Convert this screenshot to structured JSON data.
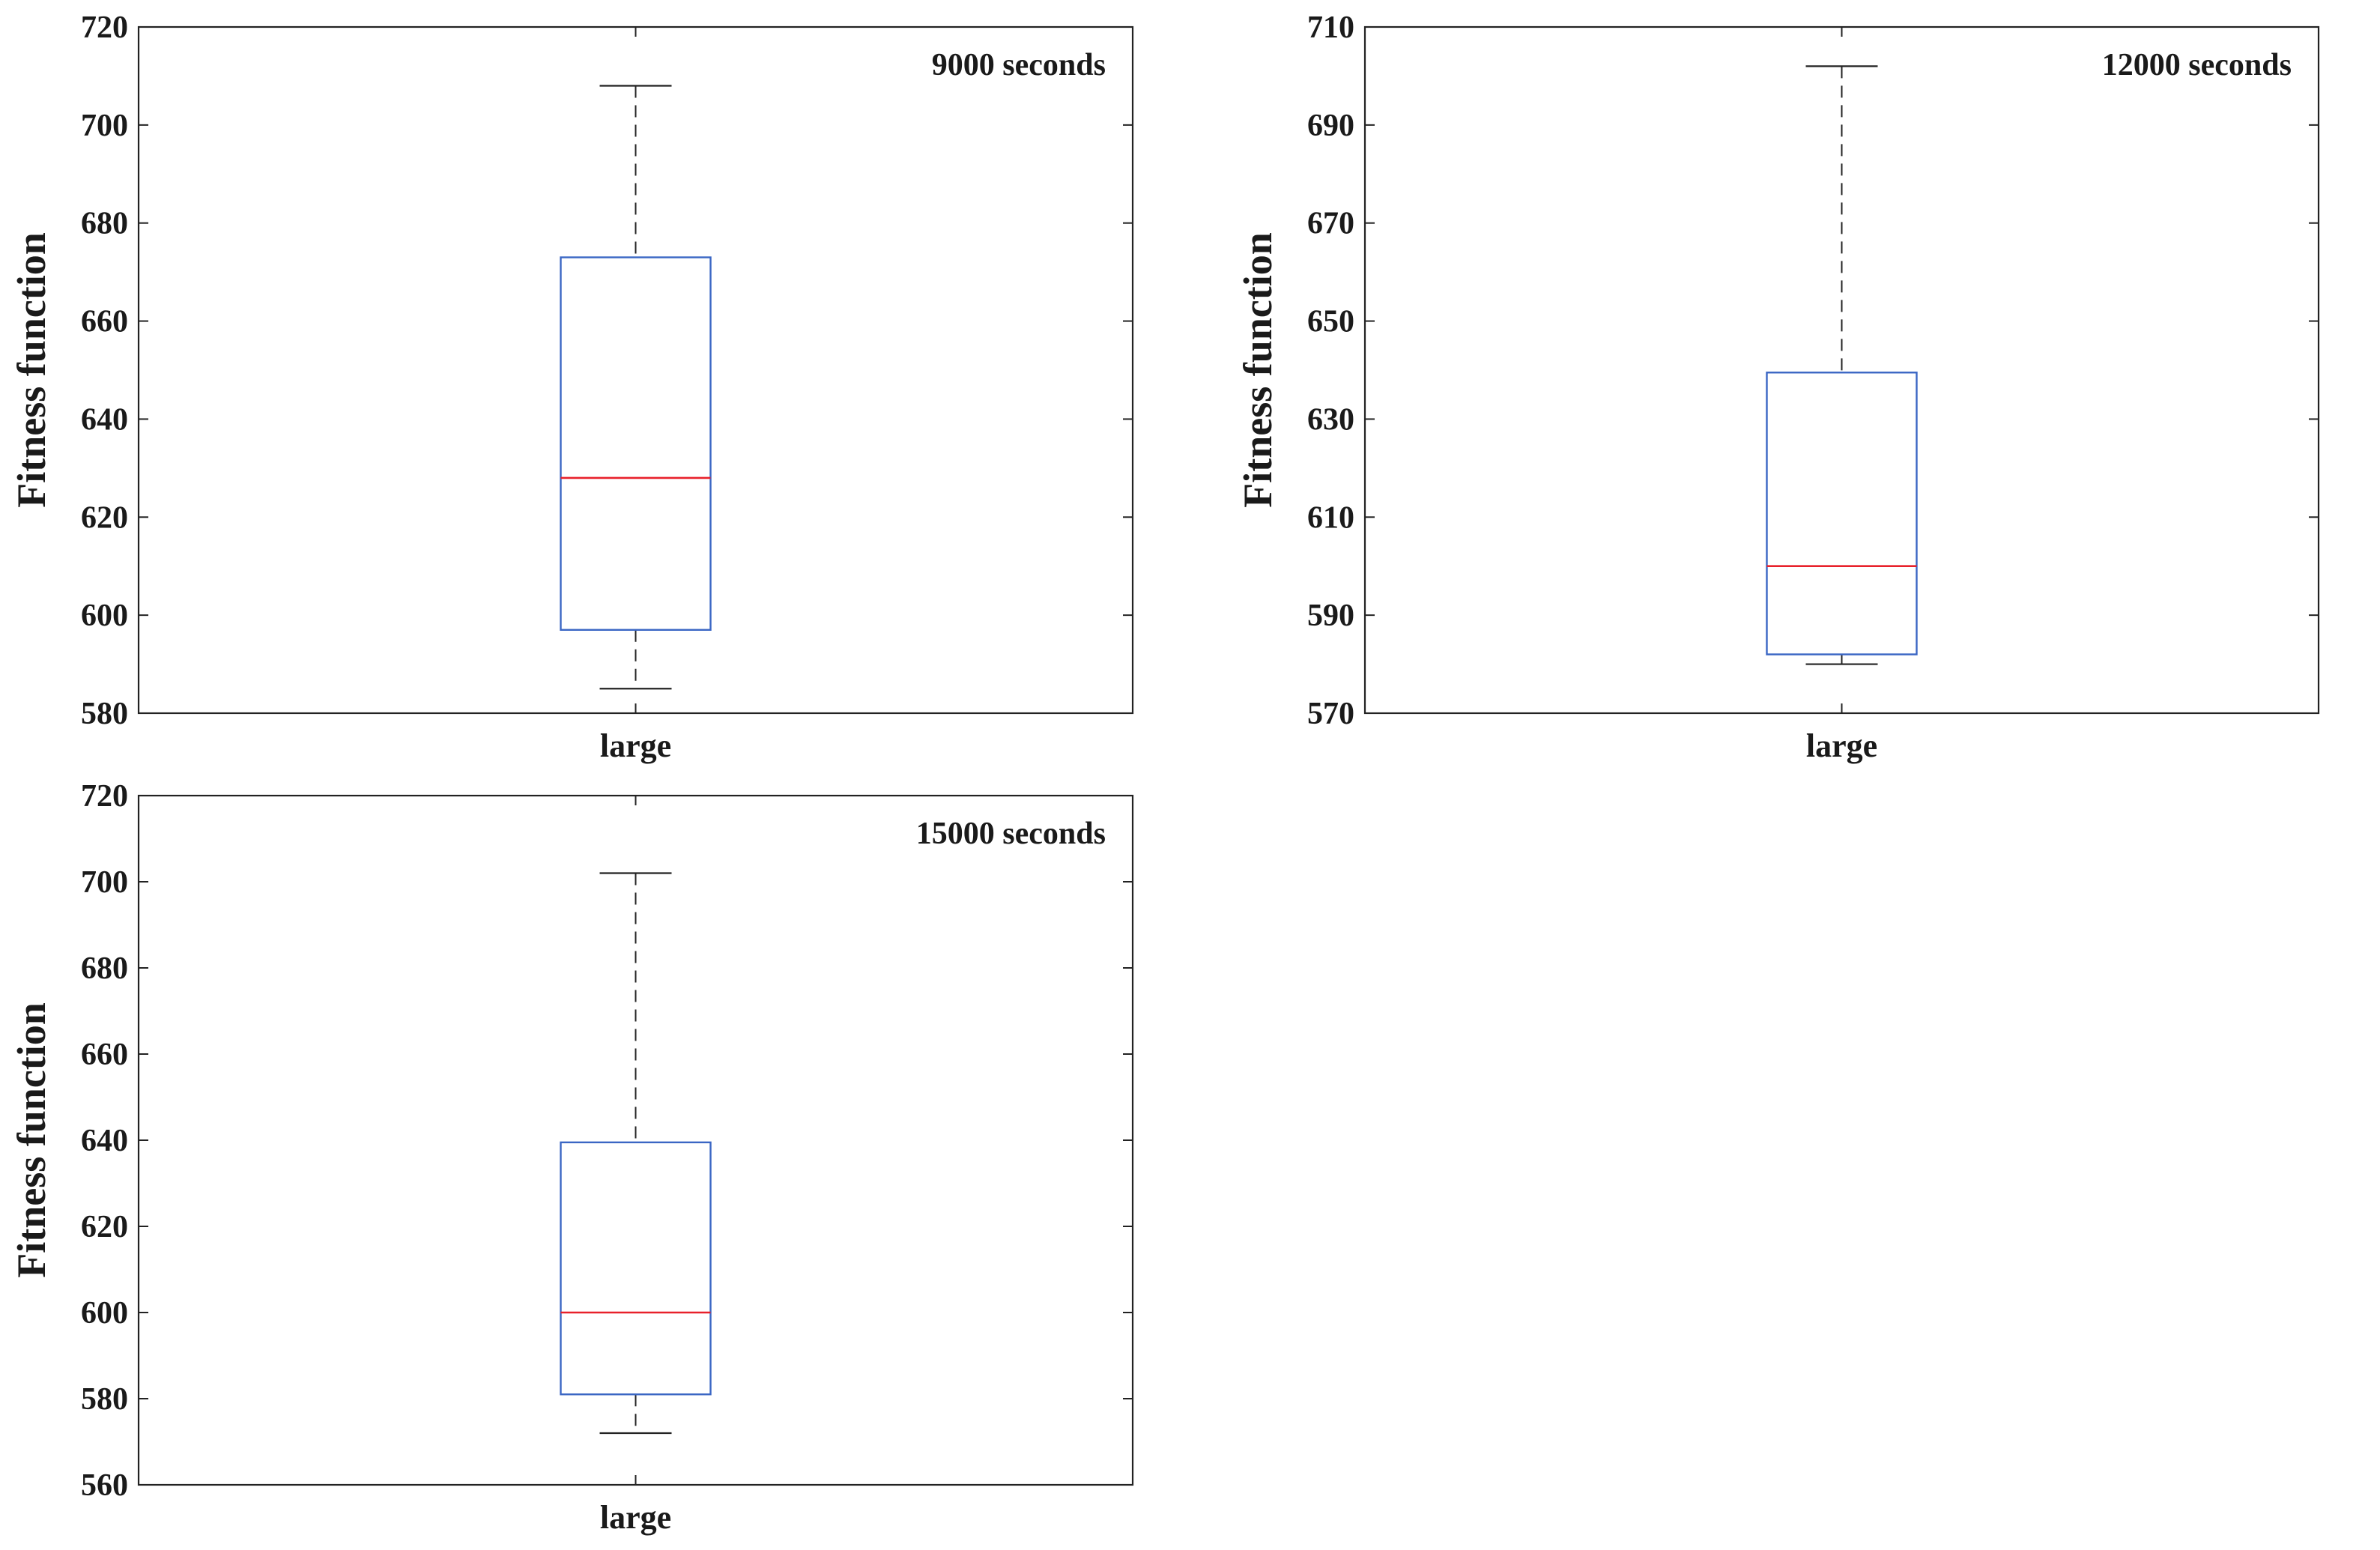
{
  "chart_data": [
    {
      "type": "box",
      "title": "9000 seconds",
      "xlabel": "",
      "ylabel": "Fitness function",
      "categories": [
        "large"
      ],
      "ylim": [
        580,
        720
      ],
      "yticks": [
        580,
        600,
        620,
        640,
        660,
        680,
        700,
        720
      ],
      "boxes": [
        {
          "category": "large",
          "whisker_low": 585,
          "q1": 597,
          "median": 628,
          "q3": 673,
          "whisker_high": 708
        }
      ],
      "grid": false,
      "colors": {
        "box": "#3a66c4",
        "median": "#e8212b",
        "whisker": "#222222"
      }
    },
    {
      "type": "box",
      "title": "12000 seconds",
      "xlabel": "",
      "ylabel": "Fitness function",
      "categories": [
        "large"
      ],
      "ylim": [
        570,
        710
      ],
      "yticks": [
        570,
        590,
        610,
        630,
        650,
        670,
        690,
        710
      ],
      "boxes": [
        {
          "category": "large",
          "whisker_low": 580,
          "q1": 582,
          "median": 600,
          "q3": 639.5,
          "whisker_high": 702
        }
      ],
      "grid": false,
      "colors": {
        "box": "#3a66c4",
        "median": "#e8212b",
        "whisker": "#222222"
      }
    },
    {
      "type": "box",
      "title": "15000 seconds",
      "xlabel": "",
      "ylabel": "Fitness function",
      "categories": [
        "large"
      ],
      "ylim": [
        560,
        720
      ],
      "yticks": [
        560,
        580,
        600,
        620,
        640,
        660,
        680,
        700,
        720
      ],
      "boxes": [
        {
          "category": "large",
          "whisker_low": 572,
          "q1": 581,
          "median": 600,
          "q3": 639.5,
          "whisker_high": 702
        }
      ],
      "grid": false,
      "colors": {
        "box": "#3a66c4",
        "median": "#e8212b",
        "whisker": "#222222"
      }
    }
  ]
}
